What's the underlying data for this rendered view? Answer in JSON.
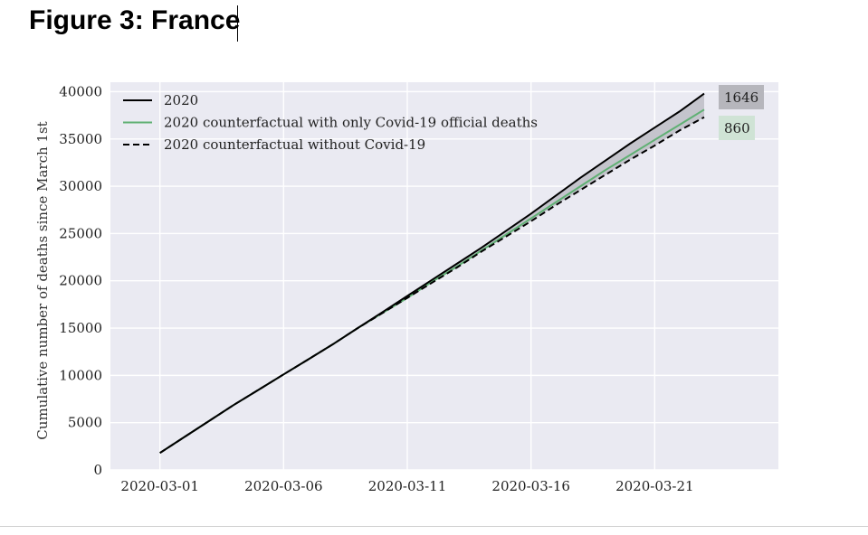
{
  "document": {
    "title": "Figure 3: France"
  },
  "chart_data": {
    "type": "line",
    "title": "",
    "xlabel": "",
    "ylabel": "Cumulative number of deaths since March 1st",
    "x": [
      "2020-03-01",
      "2020-03-02",
      "2020-03-03",
      "2020-03-04",
      "2020-03-05",
      "2020-03-06",
      "2020-03-07",
      "2020-03-08",
      "2020-03-09",
      "2020-03-10",
      "2020-03-11",
      "2020-03-12",
      "2020-03-13",
      "2020-03-14",
      "2020-03-15",
      "2020-03-16",
      "2020-03-17",
      "2020-03-18",
      "2020-03-19",
      "2020-03-20",
      "2020-03-21",
      "2020-03-22",
      "2020-03-23"
    ],
    "x_ticks": [
      "2020-03-01",
      "2020-03-06",
      "2020-03-11",
      "2020-03-16",
      "2020-03-21"
    ],
    "y_ticks": [
      0,
      5000,
      10000,
      15000,
      20000,
      25000,
      30000,
      35000,
      40000
    ],
    "xlim": [
      "2020-02-28",
      "2020-03-26"
    ],
    "ylim": [
      0,
      41000
    ],
    "grid": true,
    "legend_position": "top-left",
    "series": [
      {
        "name": "2020",
        "color": "#000000",
        "dash": "solid",
        "values": [
          1800,
          3500,
          5200,
          6900,
          8500,
          10100,
          11700,
          13300,
          15000,
          16700,
          18400,
          20100,
          21800,
          23500,
          25300,
          27100,
          29000,
          30900,
          32700,
          34500,
          36200,
          37900,
          39800
        ]
      },
      {
        "name": "2020 counterfactual with only Covid-19 official deaths",
        "color": "#5fb073",
        "dash": "solid",
        "values": [
          1800,
          3500,
          5200,
          6900,
          8500,
          10100,
          11700,
          13300,
          15000,
          16600,
          18200,
          19900,
          21500,
          23200,
          24900,
          26600,
          28300,
          30000,
          31700,
          33300,
          34900,
          36500,
          38100
        ]
      },
      {
        "name": "2020 counterfactual without Covid-19",
        "color": "#000000",
        "dash": "dashed",
        "values": [
          1800,
          3500,
          5200,
          6900,
          8500,
          10100,
          11700,
          13300,
          15000,
          16600,
          18200,
          19800,
          21400,
          23100,
          24700,
          26300,
          28000,
          29600,
          31200,
          32800,
          34300,
          35900,
          37300
        ]
      }
    ],
    "shaded_band": {
      "between": [
        "2020 counterfactual without Covid-19",
        "2020"
      ],
      "color": "#c4c4cc"
    },
    "annotations": [
      {
        "text": "1646",
        "box_color": "#b6b6bc"
      },
      {
        "text": "860",
        "box_color": "#cfe3d5"
      }
    ]
  }
}
